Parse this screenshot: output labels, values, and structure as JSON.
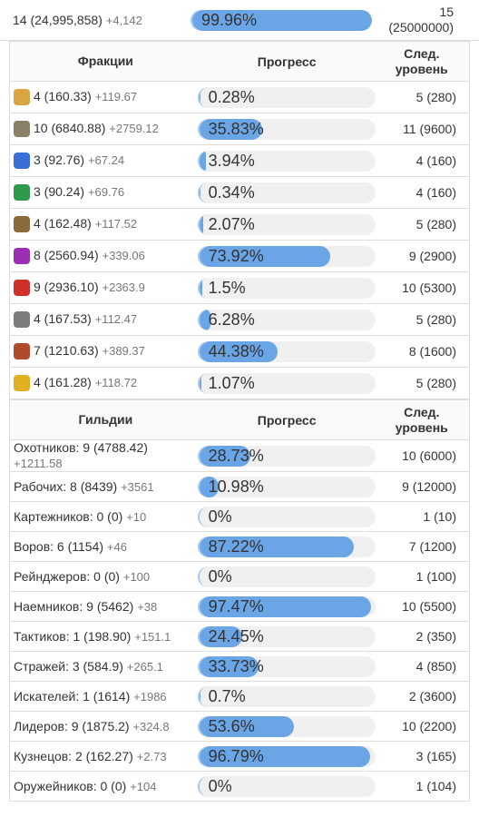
{
  "summary": {
    "level": "14 (24,995,858)",
    "gain": "+4,142",
    "progress": {
      "value": 99.96,
      "label": "99.96%"
    },
    "next_level": "15",
    "next_exp": "(25000000)"
  },
  "factions": {
    "headers": [
      "Фракции",
      "Прогресс",
      "След. уровень"
    ],
    "rows": [
      {
        "level": "4 (160.33)",
        "gain": "+119.67",
        "progress": {
          "value": 0.28,
          "label": "0.28%"
        },
        "next": "5 (280)"
      },
      {
        "level": "10 (6840.88)",
        "gain": "+2759.12",
        "progress": {
          "value": 35.83,
          "label": "35.83%"
        },
        "next": "11 (9600)"
      },
      {
        "level": "3 (92.76)",
        "gain": "+67.24",
        "progress": {
          "value": 3.94,
          "label": "3.94%"
        },
        "next": "4 (160)"
      },
      {
        "level": "3 (90.24)",
        "gain": "+69.76",
        "progress": {
          "value": 0.34,
          "label": "0.34%"
        },
        "next": "4 (160)"
      },
      {
        "level": "4 (162.48)",
        "gain": "+117.52",
        "progress": {
          "value": 2.07,
          "label": "2.07%"
        },
        "next": "5 (280)"
      },
      {
        "level": "8 (2560.94)",
        "gain": "+339.06",
        "progress": {
          "value": 73.92,
          "label": "73.92%"
        },
        "next": "9 (2900)"
      },
      {
        "level": "9 (2936.10)",
        "gain": "+2363.9",
        "progress": {
          "value": 1.5,
          "label": "1.5%"
        },
        "next": "10 (5300)"
      },
      {
        "level": "4 (167.53)",
        "gain": "+112.47",
        "progress": {
          "value": 6.28,
          "label": "6.28%"
        },
        "next": "5 (280)"
      },
      {
        "level": "7 (1210.63)",
        "gain": "+389.37",
        "progress": {
          "value": 44.38,
          "label": "44.38%"
        },
        "next": "8 (1600)"
      },
      {
        "level": "4 (161.28)",
        "gain": "+118.72",
        "progress": {
          "value": 1.07,
          "label": "1.07%"
        },
        "next": "5 (280)"
      }
    ]
  },
  "guilds": {
    "headers": [
      "Гильдии",
      "Прогресс",
      "След. уровень"
    ],
    "rows": [
      {
        "level": "Охотников: 9 (4788.42)",
        "gain": "+1211.58",
        "progress": {
          "value": 28.73,
          "label": "28.73%"
        },
        "next": "10 (6000)"
      },
      {
        "level": "Рабочих: 8 (8439)",
        "gain": "+3561",
        "progress": {
          "value": 10.98,
          "label": "10.98%"
        },
        "next": "9 (12000)"
      },
      {
        "level": "Картежников: 0 (0)",
        "gain": "+10",
        "progress": {
          "value": 0,
          "label": "0%"
        },
        "next": "1 (10)"
      },
      {
        "level": "Воров: 6 (1154)",
        "gain": "+46",
        "progress": {
          "value": 87.22,
          "label": "87.22%"
        },
        "next": "7 (1200)"
      },
      {
        "level": "Рейнджеров: 0 (0)",
        "gain": "+100",
        "progress": {
          "value": 0,
          "label": "0%"
        },
        "next": "1 (100)"
      },
      {
        "level": "Наемников: 9 (5462)",
        "gain": "+38",
        "progress": {
          "value": 97.47,
          "label": "97.47%"
        },
        "next": "10 (5500)"
      },
      {
        "level": "Тактиков: 1 (198.90)",
        "gain": "+151.1",
        "progress": {
          "value": 24.45,
          "label": "24.45%"
        },
        "next": "2 (350)"
      },
      {
        "level": "Стражей: 3 (584.9)",
        "gain": "+265.1",
        "progress": {
          "value": 33.73,
          "label": "33.73%"
        },
        "next": "4 (850)"
      },
      {
        "level": "Искателей: 1 (1614)",
        "gain": "+1986",
        "progress": {
          "value": 0.7,
          "label": "0.7%"
        },
        "next": "2 (3600)"
      },
      {
        "level": "Лидеров: 9 (1875.2)",
        "gain": "+324.8",
        "progress": {
          "value": 53.6,
          "label": "53.6%"
        },
        "next": "10 (2200)"
      },
      {
        "level": "Кузнецов: 2 (162.27)",
        "gain": "+2.73",
        "progress": {
          "value": 96.79,
          "label": "96.79%"
        },
        "next": "3 (165)"
      },
      {
        "level": "Оружейников: 0 (0)",
        "gain": "+104",
        "progress": {
          "value": 0,
          "label": "0%"
        },
        "next": "1 (104)"
      }
    ]
  }
}
